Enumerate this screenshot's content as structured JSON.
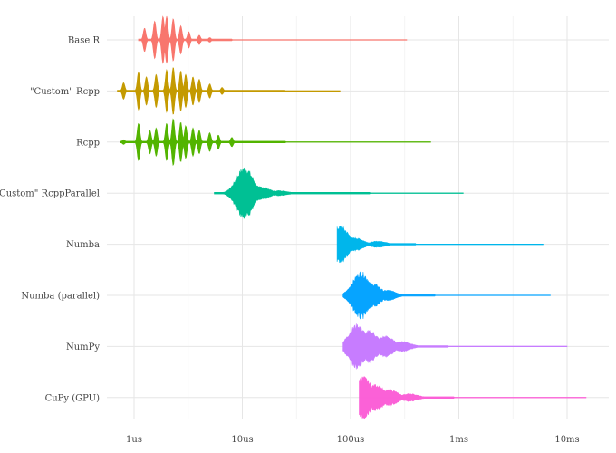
{
  "chart_data": {
    "type": "violin",
    "title": "",
    "xlabel": "",
    "ylabel": "",
    "x_scale": "log10",
    "x_unit": "seconds",
    "xlim": [
      4.2e-07,
      0.02
    ],
    "x_ticks": [
      {
        "value": 1e-06,
        "label": "1us"
      },
      {
        "value": 1e-05,
        "label": "10us"
      },
      {
        "value": 0.0001,
        "label": "100us"
      },
      {
        "value": 0.001,
        "label": "1ms"
      },
      {
        "value": 0.01,
        "label": "10ms"
      }
    ],
    "grid": true,
    "legend": "none",
    "series": [
      {
        "name": "Base R",
        "color": "#F8766D",
        "min": 1.1e-06,
        "max": 0.00033,
        "tail_end": 8e-06,
        "modes": [
          {
            "x": 1.25e-06,
            "w": 0.5
          },
          {
            "x": 1.55e-06,
            "w": 0.8
          },
          {
            "x": 1.85e-06,
            "w": 1.0
          },
          {
            "x": 2e-06,
            "w": 1.0
          },
          {
            "x": 2.3e-06,
            "w": 0.9
          },
          {
            "x": 2.7e-06,
            "w": 0.6
          },
          {
            "x": 3.2e-06,
            "w": 0.35
          },
          {
            "x": 4e-06,
            "w": 0.2
          },
          {
            "x": 5e-06,
            "w": 0.1
          }
        ]
      },
      {
        "name": "\"Custom\" Rcpp",
        "color": "#C49A00",
        "min": 7e-07,
        "max": 8e-05,
        "tail_end": 2.5e-05,
        "modes": [
          {
            "x": 8e-07,
            "w": 0.35
          },
          {
            "x": 1.1e-06,
            "w": 0.8
          },
          {
            "x": 1.3e-06,
            "w": 0.6
          },
          {
            "x": 1.6e-06,
            "w": 0.7
          },
          {
            "x": 2e-06,
            "w": 0.9
          },
          {
            "x": 2.3e-06,
            "w": 1.0
          },
          {
            "x": 2.7e-06,
            "w": 0.85
          },
          {
            "x": 3e-06,
            "w": 0.7
          },
          {
            "x": 3.5e-06,
            "w": 0.6
          },
          {
            "x": 4e-06,
            "w": 0.5
          },
          {
            "x": 5e-06,
            "w": 0.3
          },
          {
            "x": 6.5e-06,
            "w": 0.15
          }
        ]
      },
      {
        "name": "Rcpp",
        "color": "#53B400",
        "min": 7.5e-07,
        "max": 0.00055,
        "tail_end": 2.5e-05,
        "modes": [
          {
            "x": 8e-07,
            "w": 0.1
          },
          {
            "x": 1.1e-06,
            "w": 0.8
          },
          {
            "x": 1.4e-06,
            "w": 0.5
          },
          {
            "x": 1.6e-06,
            "w": 0.6
          },
          {
            "x": 2e-06,
            "w": 0.8
          },
          {
            "x": 2.3e-06,
            "w": 1.0
          },
          {
            "x": 2.7e-06,
            "w": 0.85
          },
          {
            "x": 3e-06,
            "w": 0.7
          },
          {
            "x": 3.5e-06,
            "w": 0.6
          },
          {
            "x": 4e-06,
            "w": 0.5
          },
          {
            "x": 5e-06,
            "w": 0.4
          },
          {
            "x": 6e-06,
            "w": 0.3
          },
          {
            "x": 8e-06,
            "w": 0.2
          }
        ]
      },
      {
        "name": "\"Custom\" RcppParallel",
        "color": "#00C094",
        "min": 5.5e-06,
        "max": 0.0011,
        "tail_end": 0.00015,
        "modes": [
          {
            "x": 1.05e-05,
            "w": 1.0
          },
          {
            "x": 1.5e-05,
            "w": 0.25
          },
          {
            "x": 2.2e-05,
            "w": 0.1
          }
        ]
      },
      {
        "name": "Numba",
        "color": "#00B6EB",
        "min": 7.5e-05,
        "max": 0.006,
        "tail_end": 0.0004,
        "modes": [
          {
            "x": 8e-05,
            "w": 0.7
          },
          {
            "x": 0.00011,
            "w": 0.25
          },
          {
            "x": 0.00018,
            "w": 0.12
          }
        ]
      },
      {
        "name": "Numba (parallel)",
        "color": "#06A4FF",
        "min": 8.5e-05,
        "max": 0.007,
        "tail_end": 0.0006,
        "modes": [
          {
            "x": 0.000125,
            "w": 0.9
          },
          {
            "x": 0.00016,
            "w": 0.45
          },
          {
            "x": 0.00022,
            "w": 0.2
          }
        ]
      },
      {
        "name": "NumPy",
        "color": "#C77CFF",
        "min": 8.5e-05,
        "max": 0.01,
        "tail_end": 0.0008,
        "modes": [
          {
            "x": 0.000115,
            "w": 0.85
          },
          {
            "x": 0.00015,
            "w": 0.6
          },
          {
            "x": 0.00021,
            "w": 0.4
          },
          {
            "x": 0.0003,
            "w": 0.2
          }
        ]
      },
      {
        "name": "CuPy (GPU)",
        "color": "#FB61D7",
        "min": 0.00012,
        "max": 0.015,
        "tail_end": 0.0009,
        "modes": [
          {
            "x": 0.00013,
            "w": 0.8
          },
          {
            "x": 0.00017,
            "w": 0.5
          },
          {
            "x": 0.00023,
            "w": 0.3
          },
          {
            "x": 0.00035,
            "w": 0.15
          }
        ]
      }
    ]
  }
}
